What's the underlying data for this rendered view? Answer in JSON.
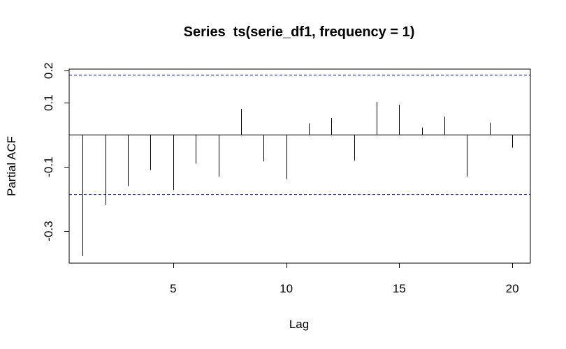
{
  "chart_data": {
    "type": "bar",
    "title": "Series  ts(serie_df1, frequency = 1)",
    "xlabel": "Lag",
    "ylabel": "Partial ACF",
    "xlim": [
      0.4,
      20.8
    ],
    "ylim": [
      -0.4,
      0.205
    ],
    "x_ticks": [
      5,
      10,
      15,
      20
    ],
    "y_ticks": [
      -0.3,
      -0.1,
      0.1,
      0.2
    ],
    "x_tick_labels": [
      "5",
      "10",
      "15",
      "20"
    ],
    "y_tick_labels": [
      "-0.3",
      "-0.1",
      "0.1",
      "0.2"
    ],
    "confidence_bound": 0.186,
    "confidence_line_color": "#0000cc",
    "spike_color": "#000000",
    "grid": false,
    "lags": [
      1,
      2,
      3,
      4,
      5,
      6,
      7,
      8,
      9,
      10,
      11,
      12,
      13,
      14,
      15,
      16,
      17,
      18,
      19,
      20
    ],
    "values": [
      -0.378,
      -0.219,
      -0.16,
      -0.11,
      -0.172,
      -0.09,
      -0.13,
      0.081,
      -0.083,
      -0.138,
      0.036,
      0.053,
      -0.08,
      0.103,
      0.094,
      0.023,
      0.057,
      -0.13,
      0.038,
      -0.04
    ]
  }
}
